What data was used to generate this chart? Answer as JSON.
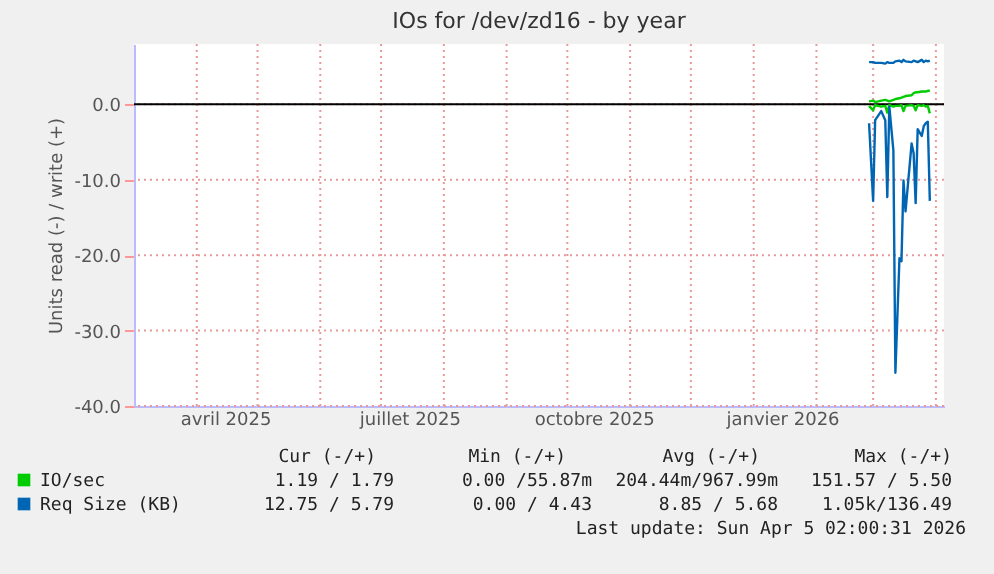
{
  "chart_data": {
    "type": "line",
    "title": "IOs for /dev/zd16 - by year",
    "ylabel": "Units read (-) / write (+)",
    "x": [
      "2026-02-27",
      "2026-03-01",
      "2026-03-02",
      "2026-03-05",
      "2026-03-07",
      "2026-03-08",
      "2026-03-09",
      "2026-03-11",
      "2026-03-12",
      "2026-03-14",
      "2026-03-15",
      "2026-03-16",
      "2026-03-17",
      "2026-03-20",
      "2026-03-21",
      "2026-03-22",
      "2026-03-23",
      "2026-03-25",
      "2026-03-26",
      "2026-03-27",
      "2026-03-28",
      "2026-03-29"
    ],
    "series": [
      {
        "name": "IO/sec",
        "color": "#00cc00",
        "values": [
          0.4,
          0.5,
          0.3,
          0.5,
          0.6,
          0.5,
          0.4,
          0.6,
          0.7,
          0.8,
          0.9,
          1.0,
          1.1,
          1.2,
          1.5,
          1.6,
          1.6,
          1.7,
          1.7,
          1.7,
          1.8,
          1.8
        ]
      },
      {
        "color": "#00cc00",
        "values": [
          -0.2,
          -0.8,
          -0.1,
          -0.3,
          -0.2,
          -1.1,
          -0.1,
          -0.3,
          -0.2,
          -0.2,
          -0.1,
          -0.9,
          -0.2,
          -0.1,
          -0.2,
          -0.8,
          -0.1,
          -0.2,
          -0.1,
          -0.3,
          -0.2,
          -1.2
        ]
      },
      {
        "name": "Req Size (KB)",
        "color": "#0066b3",
        "values": [
          5.6,
          5.6,
          5.5,
          5.5,
          5.4,
          5.6,
          5.5,
          5.5,
          5.7,
          5.8,
          5.6,
          5.9,
          5.7,
          5.6,
          5.8,
          5.7,
          5.6,
          5.9,
          5.6,
          5.8,
          5.7,
          5.8
        ]
      },
      {
        "color": "#0066b3",
        "values": [
          -2.5,
          -12.8,
          -2.1,
          -0.9,
          -2.1,
          -12.3,
          -0.3,
          -6.1,
          -35.6,
          -20.4,
          -20.8,
          -10.1,
          -14.2,
          -5.2,
          -6.5,
          -13.1,
          -3.3,
          -4.2,
          -2.9,
          -2.5,
          -2.3,
          -12.8
        ]
      }
    ],
    "xlim": [
      "2025-03-01",
      "2026-04-05"
    ],
    "xticks": [
      {
        "value": "2025-04-01",
        "label": null
      },
      {
        "value": "2025-05-01",
        "label": null
      },
      {
        "value": "2025-06-01",
        "label": null
      },
      {
        "value": "2025-07-01",
        "label": null
      },
      {
        "value": "2025-08-01",
        "label": null
      },
      {
        "value": "2025-09-01",
        "label": null
      },
      {
        "value": "2025-10-01",
        "label": null
      },
      {
        "value": "2025-11-01",
        "label": null
      },
      {
        "value": "2025-12-01",
        "label": null
      },
      {
        "value": "2026-01-01",
        "label": null
      },
      {
        "value": "2026-02-01",
        "label": null
      },
      {
        "value": "2026-03-01",
        "label": null
      },
      {
        "value": "2026-04-01",
        "label": null
      },
      {
        "value": "2025-04-15",
        "label": "avril 2025"
      },
      {
        "value": "2025-07-15",
        "label": "juillet 2025"
      },
      {
        "value": "2025-10-14",
        "label": "octobre 2025"
      },
      {
        "value": "2026-01-15",
        "label": "janvier 2026"
      }
    ],
    "ylim": [
      -40,
      8
    ],
    "yticks": [
      {
        "value": -40,
        "label": "-40.0"
      },
      {
        "value": -30,
        "label": "-30.0"
      },
      {
        "value": -20,
        "label": "-20.0"
      },
      {
        "value": -10,
        "label": "-10.0"
      },
      {
        "value": 0,
        "label": "0.0"
      }
    ],
    "grid": true,
    "legend": "bottom",
    "line_style": "solid",
    "annotations": [
      "Cur (-/+)",
      "Min (-/+)",
      "Avg (-/+)",
      "Max (-/+)",
      "1.19 / 1.79",
      "0.00 /55.87m",
      "204.44m/967.99m",
      "151.57 / 5.50",
      "12.75 / 5.79",
      "0.00 / 4.43",
      "8.85 / 5.68",
      "1.05k/136.49",
      "Last update: Sun Apr  5 02:00:31 2026"
    ]
  }
}
